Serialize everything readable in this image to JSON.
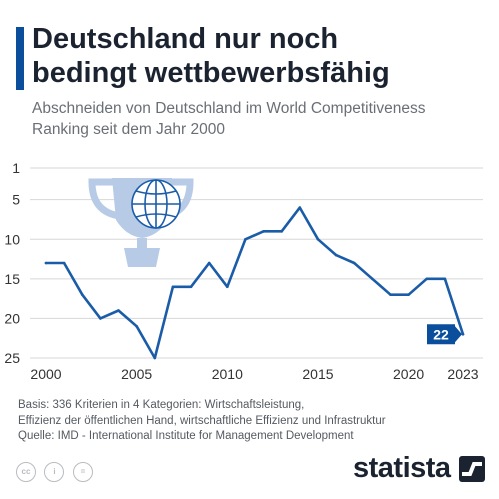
{
  "header": {
    "title_line1": "Deutschland nur noch",
    "title_line2": "bedingt wettbewerbsfähig",
    "subtitle_line1": "Abschneiden von Deutschland im World Competitiveness",
    "subtitle_line2": "Ranking seit dem Jahr 2000"
  },
  "colors": {
    "accent": "#0b4f9c",
    "line": "#1a5ca8",
    "trophy": "#b7cbe6",
    "grid": "#d7d7d7"
  },
  "chart_data": {
    "type": "line",
    "series": [
      {
        "x": [
          2000,
          2001,
          2002,
          2003,
          2004,
          2005,
          2006,
          2007,
          2008,
          2009,
          2010,
          2011,
          2012,
          2013,
          2014,
          2015,
          2016,
          2017,
          2018,
          2019,
          2020,
          2021,
          2022,
          2023
        ],
        "values": [
          13,
          13,
          17,
          20,
          19,
          21,
          25,
          16,
          16,
          13,
          16,
          10,
          9,
          9,
          6,
          10,
          12,
          13,
          15,
          17,
          17,
          15,
          15,
          22
        ]
      }
    ],
    "x_ticks": [
      "2000",
      "2005",
      "2010",
      "2015",
      "2020",
      "2023"
    ],
    "y_ticks": [
      "1",
      "5",
      "10",
      "15",
      "20",
      "25"
    ],
    "y_inverted": true,
    "ylim": [
      1,
      25
    ],
    "xlim": [
      2000,
      2023
    ],
    "grid": true,
    "annotation": {
      "x": 2023,
      "value": 22,
      "label": "22"
    },
    "icon": "trophy-globe-icon"
  },
  "footer": {
    "note_line1": "Basis: 336 Kriterien in 4 Kategorien: Wirtschaftsleistung,",
    "note_line2": "Effizienz der öffentlichen Hand, wirtschaftliche Effizienz und Infrastruktur",
    "source": "Quelle: IMD - International Institute for Management Development",
    "license_icons": [
      "cc-icon",
      "person-icon",
      "equals-icon"
    ],
    "license_glyphs": [
      "cc",
      "i",
      "="
    ],
    "brand": "statista"
  }
}
